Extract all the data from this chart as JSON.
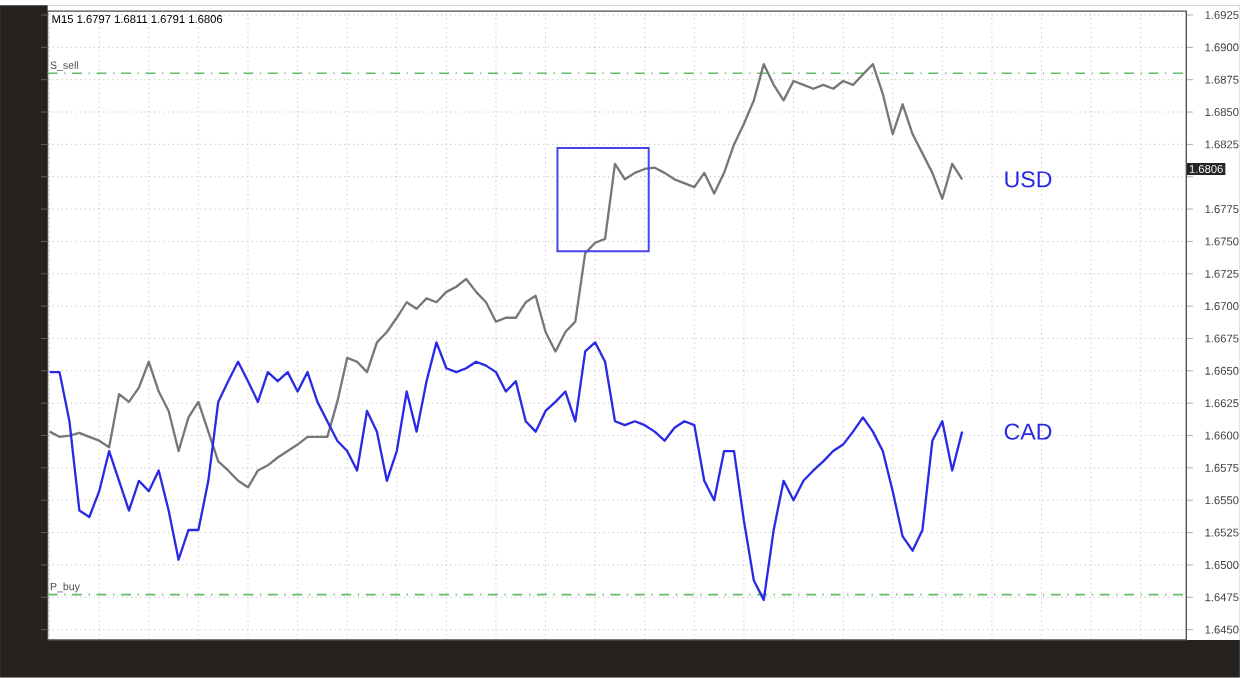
{
  "chart_data": {
    "type": "line",
    "title": "M15  1.6797 1.6811 1.6791 1.6806",
    "categories": [
      null,
      null,
      null,
      null,
      null,
      null,
      null,
      null,
      null,
      null,
      null,
      null,
      null,
      null,
      null,
      null,
      null,
      null,
      null,
      null,
      null,
      null,
      null,
      null,
      null,
      null,
      null,
      null,
      null,
      null,
      null,
      null,
      null,
      null,
      null,
      null,
      null,
      null,
      null,
      null,
      null,
      null,
      null,
      null,
      null,
      null,
      null,
      null,
      null,
      null,
      null,
      null,
      null,
      null,
      null,
      null,
      null,
      null,
      null,
      null,
      null,
      null,
      null,
      null,
      null,
      null,
      null,
      null,
      null,
      null,
      null,
      null,
      null,
      null,
      null,
      null,
      null,
      null,
      null,
      null,
      null,
      null,
      null,
      null,
      null,
      null,
      null,
      null,
      null,
      null,
      null,
      null,
      null,
      null,
      null,
      null,
      null,
      null,
      null,
      null,
      null,
      null,
      null,
      null,
      null,
      null,
      null,
      null,
      null,
      null,
      null,
      null,
      null,
      null,
      null
    ],
    "series": [
      {
        "name": "USD",
        "color": "#777777",
        "values": [
          1.6603,
          1.6599,
          1.66,
          1.6602,
          1.6599,
          1.6596,
          1.6591,
          1.6632,
          1.6626,
          1.6637,
          1.6657,
          1.6634,
          1.6619,
          1.6588,
          1.6614,
          1.6626,
          1.6603,
          1.658,
          1.6573,
          1.6565,
          1.656,
          1.6573,
          1.6577,
          1.6583,
          1.6588,
          1.6593,
          1.6599,
          1.6599,
          1.6599,
          1.6626,
          1.666,
          1.6657,
          1.6649,
          1.6672,
          1.668,
          1.6691,
          1.6703,
          1.6698,
          1.6706,
          1.6703,
          1.6711,
          1.6715,
          1.6721,
          1.6711,
          1.6703,
          1.6688,
          1.6691,
          1.6691,
          1.6703,
          1.6708,
          1.668,
          1.6665,
          1.668,
          1.6688,
          1.6741,
          1.6749,
          1.6752,
          1.681,
          1.6798,
          1.6803,
          1.6806,
          1.6807,
          1.6803,
          1.6798,
          1.6795,
          1.6792,
          1.6803,
          1.6787,
          1.6803,
          1.6825,
          1.6841,
          1.6859,
          1.6887,
          1.6871,
          1.6859,
          1.6874,
          1.6871,
          1.6868,
          1.6871,
          1.6868,
          1.6874,
          1.6871,
          1.6879,
          1.6887,
          1.6864,
          1.6833,
          1.6856,
          1.6833,
          1.6818,
          1.6803,
          1.6783,
          1.681,
          1.6798,
          null,
          null,
          null,
          null,
          null,
          null,
          null,
          null,
          null,
          null,
          null,
          null,
          null,
          null,
          null,
          null,
          null,
          null,
          null,
          null,
          null,
          null
        ]
      },
      {
        "name": "CAD",
        "color": "#2a2ae6",
        "values": [
          1.6649,
          1.6649,
          1.6611,
          1.6542,
          1.6537,
          1.6557,
          1.6588,
          1.6565,
          1.6542,
          1.6565,
          1.6557,
          1.6573,
          1.6542,
          1.6504,
          1.6527,
          1.6527,
          1.6565,
          1.6626,
          1.6642,
          1.6657,
          1.6642,
          1.6626,
          1.6649,
          1.6642,
          1.6649,
          1.6634,
          1.6649,
          1.6626,
          1.6611,
          1.6596,
          1.6588,
          1.6573,
          1.6619,
          1.6603,
          1.6565,
          1.6588,
          1.6634,
          1.6603,
          1.6642,
          1.6672,
          1.6652,
          1.6649,
          1.6652,
          1.6657,
          1.6654,
          1.6649,
          1.6634,
          1.6642,
          1.6611,
          1.6603,
          1.6619,
          1.6626,
          1.6634,
          1.6611,
          1.6665,
          1.6672,
          1.6657,
          1.6611,
          1.6608,
          1.6611,
          1.6608,
          1.6603,
          1.6596,
          1.6606,
          1.6611,
          1.6608,
          1.6565,
          1.655,
          1.6588,
          1.6588,
          1.6534,
          1.6488,
          1.6473,
          1.6527,
          1.6565,
          1.655,
          1.6565,
          1.6573,
          1.658,
          1.6588,
          1.6593,
          1.6603,
          1.6614,
          1.6603,
          1.6588,
          1.6557,
          1.6522,
          1.6511,
          1.6527,
          1.6596,
          1.6611,
          1.6573,
          1.6603,
          null,
          null,
          null,
          null,
          null,
          null,
          null,
          null,
          null,
          null,
          null,
          null,
          null,
          null,
          null,
          null,
          null,
          null,
          null,
          null,
          null,
          null
        ]
      }
    ],
    "ylim": [
      1.6442,
      1.6928
    ],
    "yticks": [
      {
        "value": 1.645,
        "label": "1.6450"
      },
      {
        "value": 1.6475,
        "label": "1.6475"
      },
      {
        "value": 1.65,
        "label": "1.6500"
      },
      {
        "value": 1.6525,
        "label": "1.6525"
      },
      {
        "value": 1.655,
        "label": "1.6550"
      },
      {
        "value": 1.6575,
        "label": "1.6575"
      },
      {
        "value": 1.66,
        "label": "1.6600"
      },
      {
        "value": 1.6625,
        "label": "1.6625"
      },
      {
        "value": 1.665,
        "label": "1.6650"
      },
      {
        "value": 1.6675,
        "label": "1.6675"
      },
      {
        "value": 1.67,
        "label": "1.6700"
      },
      {
        "value": 1.6725,
        "label": "1.6725"
      },
      {
        "value": 1.675,
        "label": "1.6750"
      },
      {
        "value": 1.6775,
        "label": "1.6775"
      },
      {
        "value": 1.68,
        "label": null
      },
      {
        "value": 1.6825,
        "label": "1.6825"
      },
      {
        "value": 1.685,
        "label": "1.6850"
      },
      {
        "value": 1.6875,
        "label": "1.6875"
      },
      {
        "value": 1.69,
        "label": "1.6900"
      },
      {
        "value": 1.6925,
        "label": "1.6925"
      }
    ],
    "tick_labels": "y",
    "grid": true,
    "ref_lines": [
      {
        "axis": "y",
        "value": 1.688,
        "label": "S_sell",
        "color": "#66bb66",
        "line_style": "dashdot"
      },
      {
        "axis": "y",
        "value": 1.6477,
        "label": "P_buy",
        "color": "#66bb66",
        "line_style": "dashdot"
      }
    ],
    "annotations": [
      {
        "text": "1.6806",
        "y": 1.6806
      }
    ]
  }
}
